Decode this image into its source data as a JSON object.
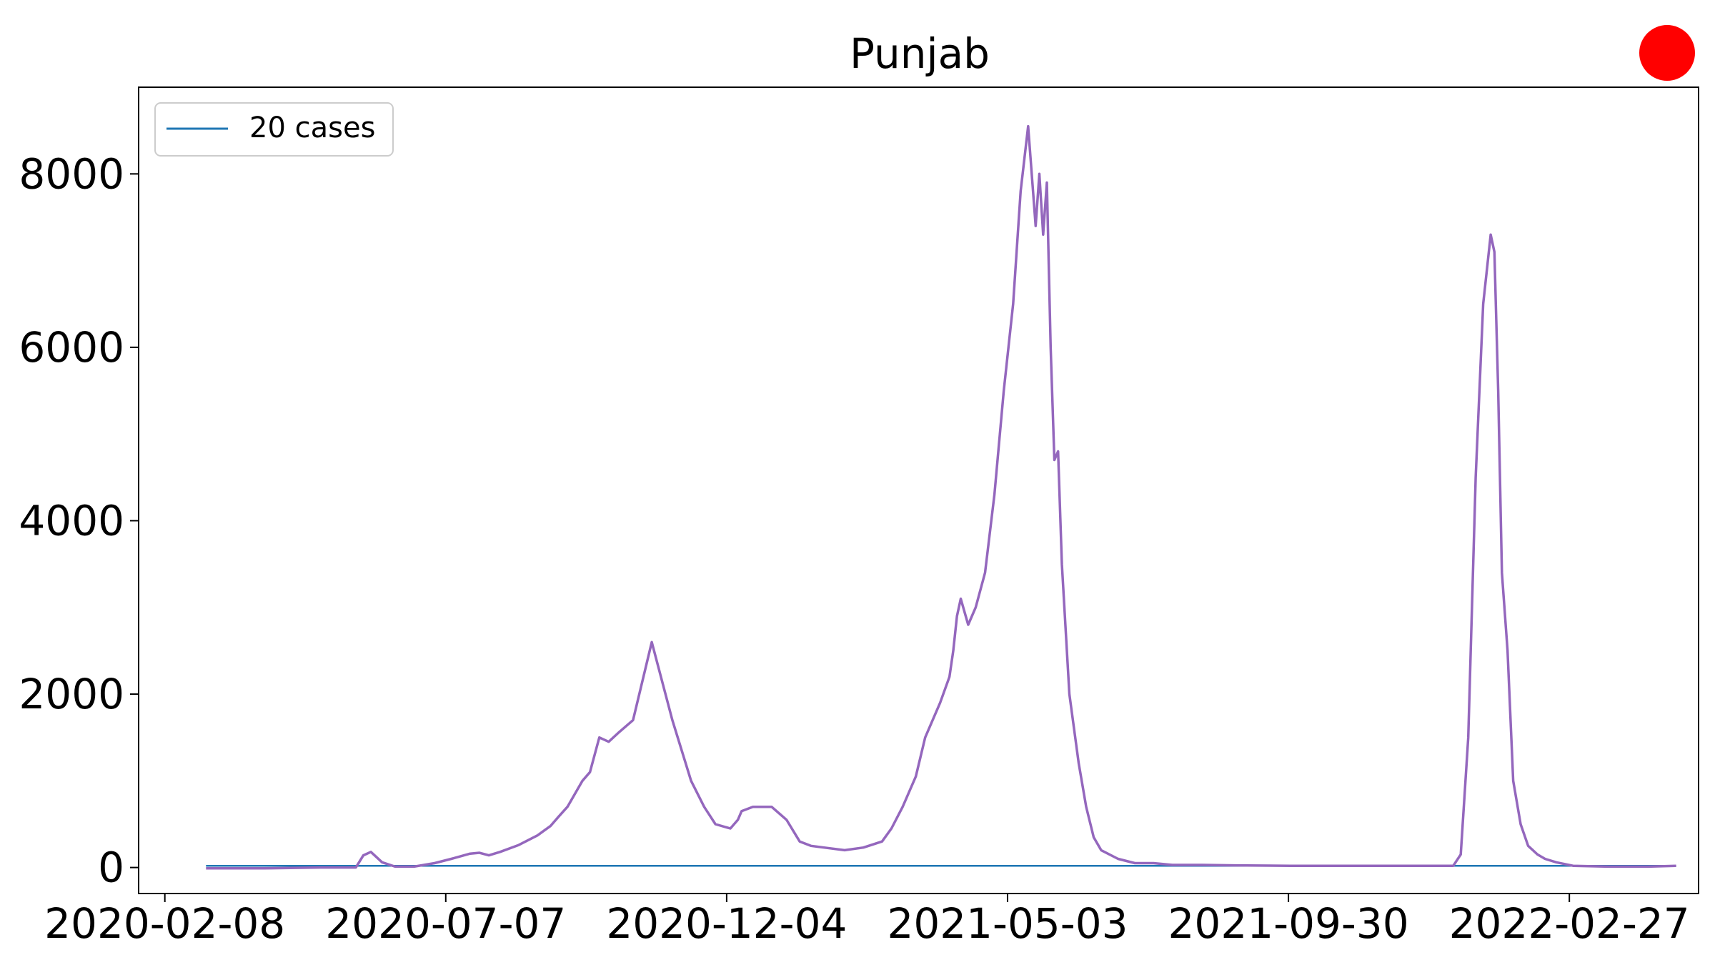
{
  "chart_data": {
    "type": "line",
    "title": "Punjab",
    "xlabel": "",
    "ylabel": "",
    "x_axis_type": "date",
    "xlim": [
      "2020-01-25",
      "2022-05-07"
    ],
    "ylim": [
      -300,
      9000
    ],
    "x_ticks": [
      "2020-02-08",
      "2020-07-07",
      "2020-12-04",
      "2021-05-03",
      "2021-09-30",
      "2022-02-27"
    ],
    "y_ticks": [
      0,
      2000,
      4000,
      6000,
      8000
    ],
    "grid": false,
    "legend": {
      "position": "top-left",
      "entries": [
        "20 cases"
      ]
    },
    "status_indicator": {
      "color": "#ff0000",
      "shape": "circle",
      "position": "top-right"
    },
    "series": [
      {
        "name": "20 cases",
        "color": "#1f77b4",
        "x": [
          "2020-03-01",
          "2022-04-25"
        ],
        "y": [
          20,
          20
        ]
      },
      {
        "name": "",
        "color": "#9467bd",
        "x": [
          "2020-03-01",
          "2020-04-01",
          "2020-05-01",
          "2020-05-20",
          "2020-05-24",
          "2020-05-28",
          "2020-06-03",
          "2020-06-10",
          "2020-06-20",
          "2020-07-01",
          "2020-07-10",
          "2020-07-20",
          "2020-07-25",
          "2020-07-30",
          "2020-08-05",
          "2020-08-15",
          "2020-08-25",
          "2020-09-01",
          "2020-09-05",
          "2020-09-10",
          "2020-09-14",
          "2020-09-18",
          "2020-09-22",
          "2020-09-27",
          "2020-10-02",
          "2020-10-07",
          "2020-10-15",
          "2020-10-25",
          "2020-11-05",
          "2020-11-15",
          "2020-11-22",
          "2020-11-28",
          "2020-12-06",
          "2020-12-10",
          "2020-12-12",
          "2020-12-18",
          "2020-12-28",
          "2021-01-05",
          "2021-01-12",
          "2021-01-18",
          "2021-01-25",
          "2021-02-05",
          "2021-02-15",
          "2021-02-25",
          "2021-03-02",
          "2021-03-08",
          "2021-03-15",
          "2021-03-20",
          "2021-03-28",
          "2021-04-02",
          "2021-04-04",
          "2021-04-06",
          "2021-04-08",
          "2021-04-12",
          "2021-04-16",
          "2021-04-21",
          "2021-04-26",
          "2021-05-01",
          "2021-05-06",
          "2021-05-10",
          "2021-05-14",
          "2021-05-18",
          "2021-05-20",
          "2021-05-22",
          "2021-05-24",
          "2021-05-26",
          "2021-05-28",
          "2021-05-30",
          "2021-06-01",
          "2021-06-05",
          "2021-06-10",
          "2021-06-14",
          "2021-06-18",
          "2021-06-22",
          "2021-07-01",
          "2021-07-10",
          "2021-07-20",
          "2021-07-30",
          "2021-08-15",
          "2021-09-01",
          "2021-10-01",
          "2021-11-01",
          "2021-12-01",
          "2021-12-20",
          "2021-12-27",
          "2021-12-31",
          "2022-01-04",
          "2022-01-08",
          "2022-01-12",
          "2022-01-16",
          "2022-01-18",
          "2022-01-20",
          "2022-01-22",
          "2022-01-25",
          "2022-01-28",
          "2022-02-01",
          "2022-02-05",
          "2022-02-10",
          "2022-02-14",
          "2022-02-20",
          "2022-03-01",
          "2022-03-20",
          "2022-04-10",
          "2022-04-25"
        ],
        "y": [
          -10,
          -10,
          0,
          0,
          140,
          180,
          60,
          10,
          10,
          50,
          100,
          160,
          170,
          140,
          180,
          260,
          370,
          480,
          580,
          700,
          850,
          1000,
          1100,
          1500,
          1450,
          1550,
          1700,
          2600,
          1700,
          1000,
          700,
          500,
          450,
          550,
          650,
          700,
          700,
          550,
          300,
          250,
          230,
          200,
          230,
          300,
          450,
          700,
          1050,
          1500,
          1900,
          2200,
          2500,
          2900,
          3100,
          2800,
          3000,
          3400,
          4300,
          5500,
          6500,
          7800,
          8550,
          7400,
          8000,
          7300,
          7900,
          6000,
          4700,
          4800,
          3500,
          2000,
          1200,
          700,
          350,
          200,
          100,
          50,
          50,
          30,
          30,
          25,
          20,
          20,
          20,
          20,
          20,
          150,
          1500,
          4500,
          6500,
          7300,
          7100,
          5500,
          3400,
          2500,
          1000,
          500,
          250,
          150,
          100,
          60,
          20,
          10,
          10,
          20
        ]
      }
    ]
  }
}
